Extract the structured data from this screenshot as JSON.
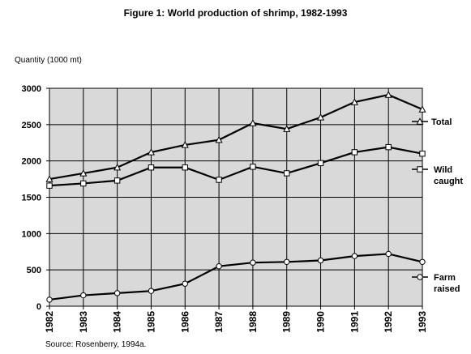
{
  "chart_data": {
    "type": "line",
    "title": "Figure 1:  World production of shrimp, 1982-1993",
    "ylabel": "Quantity (1000 mt)",
    "xlabel": "",
    "source": "Source: Rosenberry, 1994a.",
    "categories": [
      "1982",
      "1983",
      "1984",
      "1985",
      "1986",
      "1987",
      "1988",
      "1989",
      "1990",
      "1991",
      "1992",
      "1993"
    ],
    "ylim": [
      0,
      3000
    ],
    "yticks": [
      0,
      500,
      1000,
      1500,
      2000,
      2500,
      3000
    ],
    "grid": true,
    "plot_background": "#d9d9d9",
    "series": [
      {
        "name": "Total",
        "label_lines": [
          "Total"
        ],
        "marker": "triangle",
        "values": [
          1750,
          1830,
          1910,
          2120,
          2220,
          2290,
          2520,
          2440,
          2600,
          2810,
          2910,
          2710
        ]
      },
      {
        "name": "Wild caught",
        "label_lines": [
          "Wild",
          "caught"
        ],
        "marker": "square",
        "values": [
          1660,
          1690,
          1730,
          1910,
          1910,
          1740,
          1920,
          1830,
          1970,
          2120,
          2190,
          2100
        ]
      },
      {
        "name": "Farm raised",
        "label_lines": [
          "Farm",
          "raised"
        ],
        "marker": "circle",
        "values": [
          90,
          150,
          180,
          210,
          310,
          550,
          600,
          610,
          630,
          690,
          720,
          610
        ]
      }
    ]
  }
}
